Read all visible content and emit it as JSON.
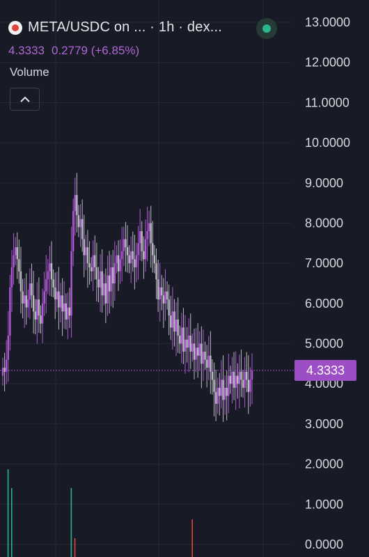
{
  "header": {
    "title": "META/USDC on ... · 1h · dex...",
    "last_price": "4.3333",
    "change": "0.2779 (+6.85%)",
    "volume_label": "Volume"
  },
  "icons": {
    "logo": "token-logo-icon",
    "status": "live-status-dot-icon",
    "collapse": "chevron-up-icon"
  },
  "colors": {
    "background": "#181a25",
    "up_candle": "#b05ad6",
    "down_candle": "#bcbcc4",
    "accent": "#9c4fc5",
    "status_dot": "#2bb58e"
  },
  "current_price_tag": "4.3333",
  "chart_data": {
    "type": "candlestick",
    "title": "META/USDC on ... · 1h · dex...",
    "ylim": [
      0,
      13
    ],
    "y_ticks": [
      "13.0000",
      "12.0000",
      "11.0000",
      "10.0000",
      "9.0000",
      "8.0000",
      "7.0000",
      "6.0000",
      "5.0000",
      "4.0000",
      "3.0000",
      "2.0000",
      "1.0000",
      "0.0000"
    ],
    "grid": true,
    "current_price": 4.3333,
    "candles_close": [
      4.4,
      4.3,
      4.6,
      5.2,
      6.4,
      6.9,
      7.2,
      7.4,
      7.1,
      6.8,
      6.3,
      6.0,
      6.2,
      5.9,
      6.1,
      6.5,
      6.2,
      5.8,
      5.6,
      6.1,
      5.7,
      5.5,
      6.0,
      6.3,
      6.6,
      6.8,
      7.0,
      6.6,
      6.4,
      6.1,
      6.3,
      5.9,
      6.2,
      5.8,
      6.0,
      5.6,
      5.9,
      5.7,
      7.3,
      8.3,
      8.7,
      8.2,
      7.9,
      8.1,
      7.6,
      7.2,
      7.4,
      7.0,
      6.9,
      6.8,
      7.2,
      6.9,
      6.6,
      6.4,
      6.8,
      6.2,
      6.5,
      6.0,
      6.7,
      6.3,
      6.9,
      6.5,
      7.0,
      7.2,
      6.8,
      7.1,
      7.3,
      7.6,
      7.4,
      7.2,
      7.0,
      7.3,
      7.1,
      6.9,
      7.2,
      7.5,
      7.8,
      7.3,
      7.1,
      7.6,
      7.8,
      8.0,
      7.5,
      7.2,
      7.0,
      6.6,
      6.1,
      6.4,
      6.2,
      6.0,
      6.3,
      6.1,
      5.7,
      5.4,
      5.8,
      5.3,
      5.6,
      5.2,
      5.0,
      5.4,
      4.8,
      5.1,
      4.9,
      5.2,
      4.8,
      5.0,
      4.6,
      4.9,
      4.7,
      5.0,
      4.5,
      4.8,
      4.6,
      4.4,
      4.7,
      4.3,
      4.1,
      3.8,
      3.5,
      3.9,
      3.7,
      4.1,
      3.6,
      3.9,
      3.7,
      4.2,
      4.0,
      4.3,
      3.9,
      4.2,
      4.0,
      4.3,
      4.1,
      3.9,
      4.3,
      4.1,
      3.8,
      4.1,
      4.33
    ],
    "volume": [
      {
        "index": 3,
        "value": 0.7,
        "color": "#2bb58e"
      },
      {
        "index": 5,
        "value": 0.55,
        "color": "#2bb58e"
      },
      {
        "index": 38,
        "value": 0.55,
        "color": "#2bb58e"
      },
      {
        "index": 40,
        "value": 0.15,
        "color": "#e0443a"
      },
      {
        "index": 105,
        "value": 0.3,
        "color": "#e0443a"
      }
    ]
  }
}
